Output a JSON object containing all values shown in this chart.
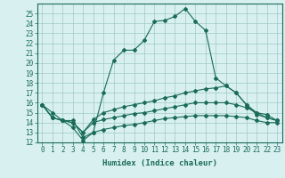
{
  "xlabel": "Humidex (Indice chaleur)",
  "x_values": [
    0,
    1,
    2,
    3,
    4,
    5,
    6,
    7,
    8,
    9,
    10,
    11,
    12,
    13,
    14,
    15,
    16,
    17,
    18,
    19,
    20,
    21,
    22,
    23
  ],
  "line1": [
    15.8,
    15.0,
    14.2,
    14.2,
    12.5,
    13.0,
    17.0,
    20.3,
    21.3,
    21.3,
    22.3,
    24.2,
    24.3,
    24.7,
    25.5,
    24.2,
    23.3,
    18.5,
    17.7,
    17.0,
    15.8,
    15.0,
    14.8,
    14.2
  ],
  "line2": [
    15.8,
    14.5,
    14.2,
    14.0,
    13.0,
    14.3,
    15.0,
    15.3,
    15.6,
    15.8,
    16.0,
    16.2,
    16.5,
    16.7,
    17.0,
    17.2,
    17.4,
    17.5,
    17.7,
    17.0,
    15.8,
    14.8,
    14.5,
    14.2
  ],
  "line3": [
    15.8,
    14.5,
    14.2,
    14.0,
    13.0,
    14.0,
    14.3,
    14.5,
    14.7,
    14.9,
    15.0,
    15.2,
    15.4,
    15.6,
    15.8,
    16.0,
    16.0,
    16.0,
    16.0,
    15.8,
    15.5,
    15.0,
    14.5,
    14.2
  ],
  "line4": [
    15.8,
    14.5,
    14.2,
    13.5,
    12.2,
    13.0,
    13.3,
    13.5,
    13.7,
    13.8,
    14.0,
    14.2,
    14.4,
    14.5,
    14.6,
    14.7,
    14.7,
    14.7,
    14.7,
    14.6,
    14.5,
    14.2,
    14.0,
    14.0
  ],
  "line_color": "#1a6b5a",
  "bg_color": "#d8f0f0",
  "grid_color": "#a0c8c8",
  "ylim": [
    12,
    26
  ],
  "xlim": [
    -0.5,
    23.5
  ],
  "yticks": [
    12,
    13,
    14,
    15,
    16,
    17,
    18,
    19,
    20,
    21,
    22,
    23,
    24,
    25
  ],
  "xticks": [
    0,
    1,
    2,
    3,
    4,
    5,
    6,
    7,
    8,
    9,
    10,
    11,
    12,
    13,
    14,
    15,
    16,
    17,
    18,
    19,
    20,
    21,
    22,
    23
  ],
  "tick_fontsize": 5.5,
  "xlabel_fontsize": 6.5
}
